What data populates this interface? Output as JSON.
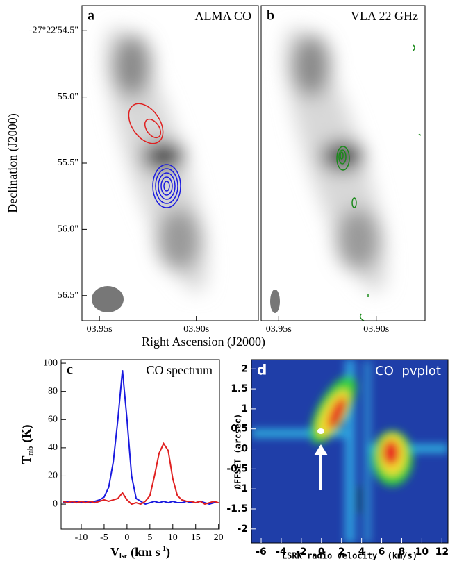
{
  "chart_data": [
    {
      "type": "image",
      "panel": "a",
      "title": "ALMA CO",
      "xlabel": "Right Ascension (J2000)",
      "ylabel": "Declination (J2000)",
      "xlim": [
        3.959,
        3.868
      ],
      "ylim": [
        56.69,
        54.31
      ],
      "xticks": [
        {
          "value": 3.95,
          "label": "03.95s"
        },
        {
          "value": 3.9,
          "label": "03.90s"
        }
      ],
      "yticks": [
        {
          "value": 54.5,
          "label": "-27°22'54.5\""
        },
        {
          "value": 55.0,
          "label": "55.0\""
        },
        {
          "value": 55.5,
          "label": "55.5\""
        },
        {
          "value": 56.0,
          "label": "56.0\""
        },
        {
          "value": 56.5,
          "label": "56.5\""
        }
      ]
    },
    {
      "type": "image",
      "panel": "b",
      "title": "VLA 22 GHz",
      "xlim": [
        3.959,
        3.875
      ],
      "ylim": [
        56.69,
        54.31
      ],
      "xticks": [
        {
          "value": 3.95,
          "label": "03.95s"
        },
        {
          "value": 3.9,
          "label": "03.90s"
        }
      ]
    },
    {
      "type": "line",
      "panel": "c",
      "title": "CO spectrum",
      "xlabel": [
        "V",
        "lsr",
        "(km s",
        "-1",
        ")"
      ],
      "ylabel": [
        "T",
        "mb",
        "(K)"
      ],
      "xlim": [
        -14.4,
        20.2
      ],
      "ylim": [
        -17.7,
        102.5
      ],
      "xticks": [
        -10,
        -5,
        0,
        5,
        10,
        15,
        20
      ],
      "yticks": [
        0,
        20,
        40,
        60,
        80,
        100
      ],
      "x": [
        -14,
        -13,
        -12,
        -11,
        -10,
        -9,
        -8,
        -7,
        -6,
        -5,
        -4,
        -3,
        -2,
        -1,
        0,
        1,
        2,
        3,
        4,
        5,
        6,
        7,
        8,
        9,
        10,
        11,
        12,
        13,
        14,
        15,
        16,
        17,
        18,
        19,
        20
      ],
      "series": [
        {
          "color": "#1a1adf",
          "values": [
            1,
            2,
            1,
            2,
            1,
            2,
            1,
            2,
            3,
            5,
            12,
            30,
            60,
            95,
            60,
            20,
            4,
            2,
            0,
            1,
            2,
            1,
            2,
            1,
            2,
            1,
            1,
            2,
            1,
            1,
            2,
            1,
            0,
            1,
            1
          ]
        },
        {
          "color": "#e02020",
          "values": [
            2,
            1,
            2,
            1,
            2,
            1,
            2,
            1,
            2,
            3,
            2,
            3,
            4,
            8,
            3,
            0,
            1,
            0,
            2,
            6,
            20,
            36,
            43,
            38,
            18,
            6,
            3,
            2,
            2,
            1,
            2,
            0,
            1,
            2,
            1
          ]
        }
      ]
    },
    {
      "type": "heatmap",
      "panel": "d",
      "title": "CO  pvplot",
      "xlabel": "LSRK radio velocity  (km/s)",
      "ylabel": "OFFSET (arcsec)",
      "xlim": [
        -6.97,
        12.6
      ],
      "ylim": [
        -2.35,
        2.23
      ],
      "xticks": [
        -6,
        -4,
        -2,
        0,
        2,
        4,
        6,
        8,
        10,
        12
      ],
      "yticks": [
        2,
        1.5,
        1,
        0.5,
        0,
        -0.5,
        -1,
        -1.5,
        -2
      ]
    }
  ]
}
